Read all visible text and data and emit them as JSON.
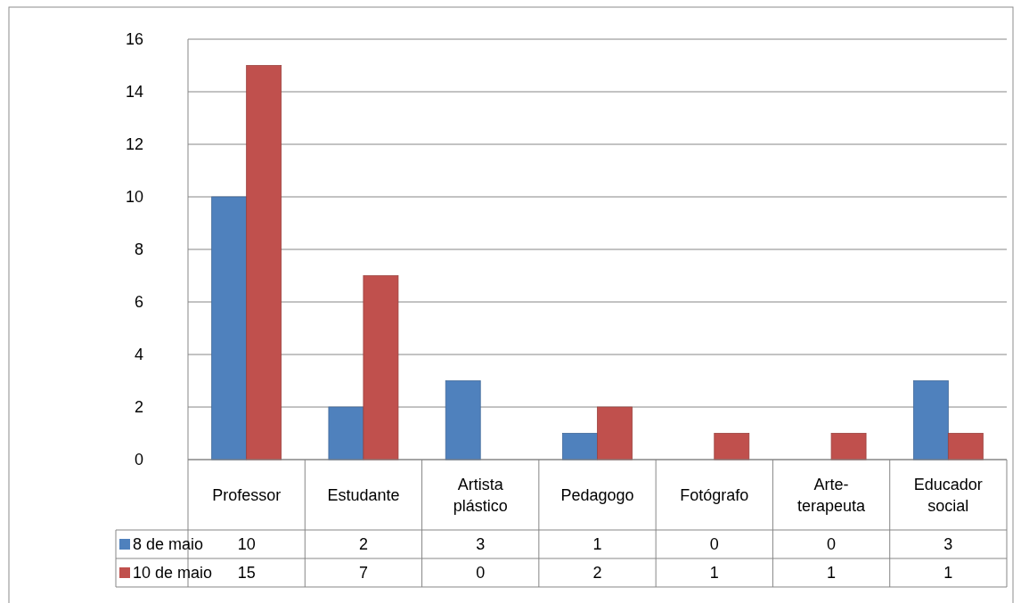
{
  "chart_data": {
    "type": "bar",
    "categories": [
      "Professor",
      "Estudante",
      "Artista plástico",
      "Pedagogo",
      "Fotógrafo",
      "Arte-terapeuta",
      "Educador social"
    ],
    "series": [
      {
        "name": "8 de maio",
        "color": "#4f81bd",
        "values": [
          10,
          2,
          3,
          1,
          0,
          0,
          3
        ]
      },
      {
        "name": "10 de maio",
        "color": "#c0504d",
        "values": [
          15,
          7,
          0,
          2,
          1,
          1,
          1
        ]
      }
    ],
    "ylim": [
      0,
      16
    ],
    "yticks": [
      0,
      2,
      4,
      6,
      8,
      10,
      12,
      14,
      16
    ],
    "grid": "y",
    "legend": "bottom left",
    "data_labels": true
  }
}
